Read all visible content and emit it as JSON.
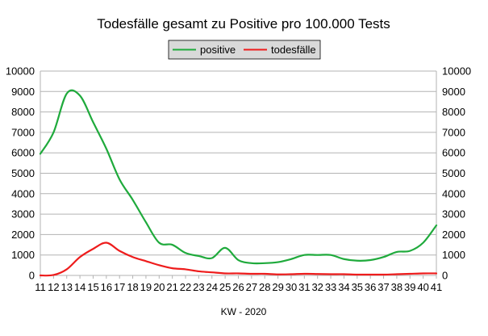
{
  "chart_data": {
    "type": "line",
    "title": "Todesfälle gesamt zu Positive pro 100.000 Tests",
    "xlabel": "KW - 2020",
    "ylabel": "",
    "ylim": [
      0,
      10000
    ],
    "y_ticks": [
      0,
      1000,
      2000,
      3000,
      4000,
      5000,
      6000,
      7000,
      8000,
      9000,
      10000
    ],
    "x": [
      11,
      12,
      13,
      14,
      15,
      16,
      17,
      18,
      19,
      20,
      21,
      22,
      23,
      24,
      25,
      26,
      27,
      28,
      29,
      30,
      31,
      32,
      33,
      34,
      35,
      36,
      37,
      38,
      39,
      40,
      41
    ],
    "grid": true,
    "legend_position": "top-center",
    "series": [
      {
        "name": "positive",
        "color": "#1faa3c",
        "values": [
          5950,
          7000,
          8900,
          8800,
          7500,
          6200,
          4700,
          3700,
          2600,
          1600,
          1500,
          1100,
          950,
          850,
          1350,
          750,
          600,
          600,
          650,
          800,
          1000,
          1000,
          1000,
          800,
          720,
          750,
          900,
          1150,
          1200,
          1600,
          2450
        ]
      },
      {
        "name": "todesfälle",
        "color": "#ee1c1c",
        "values": [
          0,
          20,
          300,
          900,
          1300,
          1600,
          1200,
          900,
          700,
          500,
          350,
          300,
          200,
          150,
          100,
          100,
          80,
          80,
          50,
          60,
          80,
          70,
          60,
          60,
          40,
          40,
          40,
          60,
          80,
          100,
          100
        ]
      }
    ]
  }
}
